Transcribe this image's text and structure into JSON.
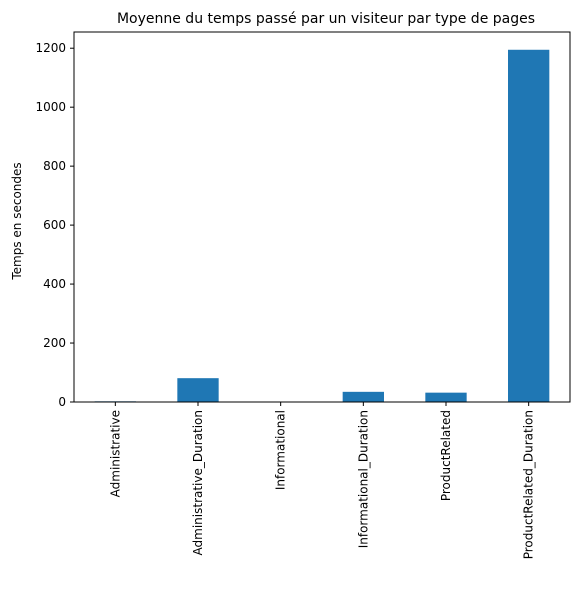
{
  "chart_data": {
    "type": "bar",
    "title": "Moyenne du temps passé par un visiteur par type de pages",
    "xlabel": "",
    "ylabel": "Temps en secondes",
    "categories": [
      "Administrative",
      "Administrative_Duration",
      "Informational",
      "Informational_Duration",
      "ProductRelated",
      "ProductRelated_Duration"
    ],
    "values": [
      2.3,
      80.8,
      0.5,
      34.5,
      31.7,
      1194.7
    ],
    "ylim": [
      0,
      1255
    ],
    "yticks": [
      0,
      200,
      400,
      600,
      800,
      1000,
      1200
    ],
    "bar_color": "#1f77b4",
    "grid": false,
    "legend": "none"
  }
}
